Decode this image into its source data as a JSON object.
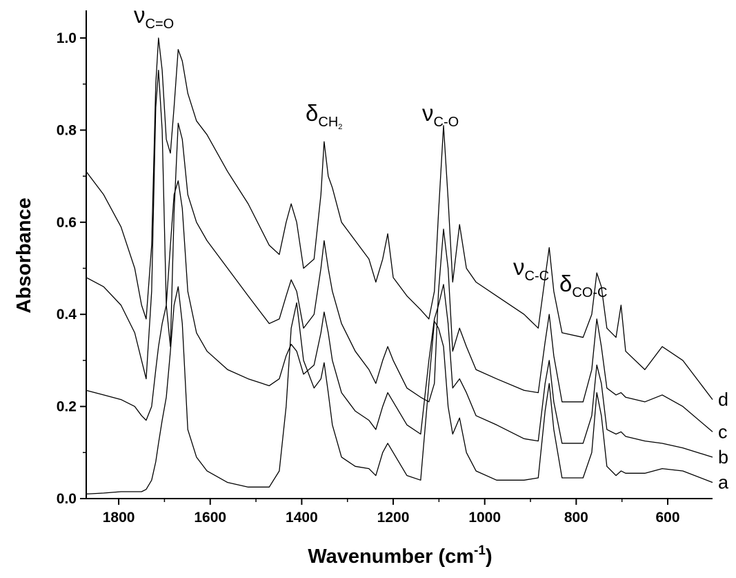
{
  "chart_data": {
    "type": "line",
    "xlabel": {
      "text": "Wavenumber (cm",
      "sup": "-1",
      "end": ")"
    },
    "ylabel": "Absorbance",
    "xlim": [
      1871,
      502
    ],
    "ylim": [
      0,
      1.06
    ],
    "xticks": [
      1800,
      1600,
      1400,
      1200,
      1000,
      800,
      600
    ],
    "xminorticks": [
      1700,
      1500,
      1300,
      1100,
      900,
      700
    ],
    "yticks": [
      {
        "value": 0,
        "label": "0.0"
      },
      0.2,
      0.4,
      0.6,
      0.8,
      {
        "value": 1,
        "label": "1.0"
      }
    ],
    "yminorticks": [
      0.1,
      0.3,
      0.5,
      0.7,
      0.9
    ],
    "annotations": [
      {
        "symbol": "ν",
        "sub": "C=O"
      },
      {
        "symbol": "δ",
        "sub": "CH",
        "sub2": "2"
      },
      {
        "symbol": "ν",
        "sub": "C-O"
      },
      {
        "symbol": "ν",
        "sub": "C-C"
      },
      {
        "symbol": "δ",
        "sub": "CO-C"
      }
    ],
    "x": [
      1871,
      1833,
      1795,
      1765,
      1750,
      1740,
      1728,
      1719,
      1713,
      1705,
      1696,
      1687,
      1679,
      1670,
      1661,
      1649,
      1630,
      1607,
      1562,
      1517,
      1471,
      1449,
      1434,
      1423,
      1411,
      1396,
      1373,
      1358,
      1351,
      1342,
      1333,
      1313,
      1283,
      1253,
      1238,
      1223,
      1212,
      1200,
      1170,
      1140,
      1122,
      1110,
      1101,
      1090,
      1080,
      1070,
      1055,
      1040,
      1019,
      974,
      914,
      883,
      868,
      859,
      849,
      831,
      785,
      766,
      755,
      745,
      733,
      713,
      702,
      692,
      650,
      612,
      567,
      502
    ],
    "series": [
      {
        "name": "d",
        "color": "#000000",
        "values": [
          0.71,
          0.66,
          0.59,
          0.5,
          0.42,
          0.39,
          0.55,
          0.9,
          1.0,
          0.93,
          0.78,
          0.75,
          0.85,
          0.975,
          0.95,
          0.88,
          0.82,
          0.79,
          0.71,
          0.64,
          0.55,
          0.53,
          0.6,
          0.64,
          0.6,
          0.5,
          0.52,
          0.66,
          0.775,
          0.7,
          0.675,
          0.6,
          0.56,
          0.52,
          0.47,
          0.52,
          0.575,
          0.48,
          0.44,
          0.41,
          0.39,
          0.45,
          0.62,
          0.81,
          0.65,
          0.47,
          0.595,
          0.5,
          0.47,
          0.44,
          0.4,
          0.37,
          0.48,
          0.545,
          0.45,
          0.36,
          0.35,
          0.4,
          0.49,
          0.46,
          0.37,
          0.35,
          0.42,
          0.32,
          0.28,
          0.33,
          0.3,
          0.215
        ]
      },
      {
        "name": "c",
        "color": "#000000",
        "values": [
          0.48,
          0.46,
          0.42,
          0.36,
          0.3,
          0.26,
          0.45,
          0.85,
          0.93,
          0.8,
          0.42,
          0.33,
          0.62,
          0.815,
          0.78,
          0.66,
          0.6,
          0.56,
          0.5,
          0.44,
          0.38,
          0.39,
          0.44,
          0.475,
          0.45,
          0.37,
          0.4,
          0.5,
          0.56,
          0.5,
          0.45,
          0.38,
          0.32,
          0.28,
          0.25,
          0.3,
          0.33,
          0.3,
          0.24,
          0.22,
          0.21,
          0.25,
          0.45,
          0.585,
          0.5,
          0.32,
          0.37,
          0.33,
          0.28,
          0.26,
          0.235,
          0.23,
          0.34,
          0.4,
          0.31,
          0.21,
          0.21,
          0.28,
          0.39,
          0.33,
          0.24,
          0.225,
          0.23,
          0.22,
          0.21,
          0.225,
          0.2,
          0.145
        ]
      },
      {
        "name": "b",
        "color": "#000000",
        "values": [
          0.235,
          0.225,
          0.215,
          0.2,
          0.18,
          0.17,
          0.2,
          0.28,
          0.33,
          0.38,
          0.42,
          0.55,
          0.66,
          0.69,
          0.63,
          0.45,
          0.36,
          0.32,
          0.28,
          0.26,
          0.245,
          0.26,
          0.31,
          0.335,
          0.32,
          0.27,
          0.29,
          0.36,
          0.405,
          0.36,
          0.3,
          0.23,
          0.19,
          0.17,
          0.15,
          0.2,
          0.23,
          0.21,
          0.16,
          0.14,
          0.3,
          0.39,
          0.42,
          0.465,
          0.38,
          0.24,
          0.26,
          0.23,
          0.18,
          0.16,
          0.13,
          0.125,
          0.25,
          0.3,
          0.21,
          0.12,
          0.12,
          0.18,
          0.29,
          0.25,
          0.15,
          0.14,
          0.145,
          0.135,
          0.125,
          0.12,
          0.11,
          0.09
        ]
      },
      {
        "name": "a",
        "color": "#000000",
        "values": [
          0.01,
          0.012,
          0.015,
          0.015,
          0.015,
          0.02,
          0.04,
          0.08,
          0.12,
          0.17,
          0.22,
          0.32,
          0.42,
          0.46,
          0.38,
          0.15,
          0.09,
          0.06,
          0.035,
          0.025,
          0.025,
          0.06,
          0.2,
          0.37,
          0.425,
          0.3,
          0.24,
          0.26,
          0.295,
          0.23,
          0.16,
          0.09,
          0.07,
          0.065,
          0.05,
          0.1,
          0.12,
          0.1,
          0.05,
          0.04,
          0.25,
          0.385,
          0.37,
          0.33,
          0.2,
          0.14,
          0.175,
          0.1,
          0.06,
          0.04,
          0.04,
          0.045,
          0.19,
          0.25,
          0.15,
          0.045,
          0.045,
          0.1,
          0.23,
          0.18,
          0.07,
          0.05,
          0.06,
          0.055,
          0.055,
          0.065,
          0.06,
          0.035
        ]
      }
    ]
  }
}
